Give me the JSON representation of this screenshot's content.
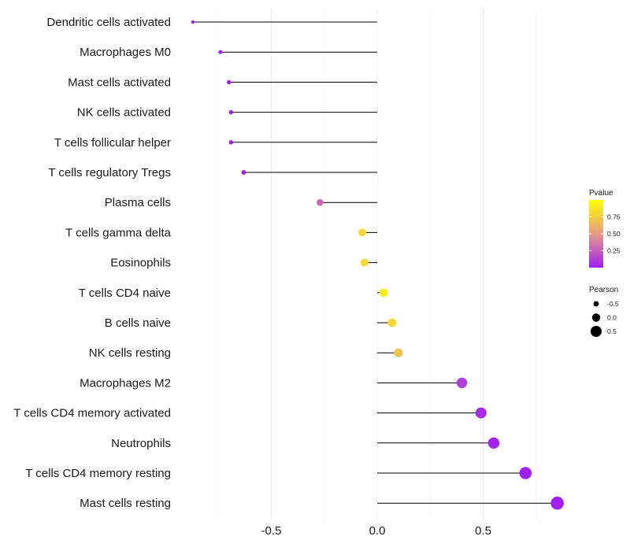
{
  "chart_data": {
    "type": "lollipop",
    "title": "",
    "xlabel": "",
    "ylabel": "",
    "xlim": [
      -0.9,
      0.9
    ],
    "x_ticks": [
      -0.5,
      0.0,
      0.5
    ],
    "x_tick_labels": [
      "-0.5",
      "0.0",
      "0.5"
    ],
    "grid": true,
    "categories": [
      "Dendritic cells activated",
      "Macrophages M0",
      "Mast cells activated",
      "NK cells activated",
      "T cells follicular helper",
      "T cells regulatory  Tregs ",
      "Plasma cells",
      "T cells gamma delta",
      "Eosinophils",
      "T cells CD4 naive",
      "B cells naive",
      "NK cells resting",
      "Macrophages M2",
      "T cells CD4 memory activated",
      "Neutrophils",
      "T cells CD4 memory resting",
      "Mast cells resting"
    ],
    "values": [
      -0.87,
      -0.74,
      -0.7,
      -0.69,
      -0.69,
      -0.63,
      -0.27,
      -0.07,
      -0.06,
      0.03,
      0.07,
      0.1,
      0.4,
      0.49,
      0.55,
      0.7,
      0.85
    ],
    "pvalues": [
      0.0,
      0.0,
      0.0,
      0.0,
      0.0,
      0.01,
      0.3,
      0.8,
      0.82,
      0.9,
      0.8,
      0.7,
      0.12,
      0.05,
      0.02,
      0.0,
      0.0
    ],
    "legend_pvalue": {
      "title": "Pvalue",
      "ticks": [
        0.75,
        0.5,
        0.25
      ],
      "tick_labels": [
        "0.75",
        "0.50",
        "0.25"
      ],
      "range": [
        0.0,
        1.0
      ],
      "colors": {
        "low": "#a020f0",
        "mid": "#e59a87",
        "high": "#ffff00"
      }
    },
    "legend_pearson": {
      "title": "Pearson",
      "values": [
        -0.5,
        0.0,
        0.5
      ],
      "labels": [
        "-0.5",
        "0.0",
        "0.5"
      ]
    },
    "legend_position": "right"
  }
}
